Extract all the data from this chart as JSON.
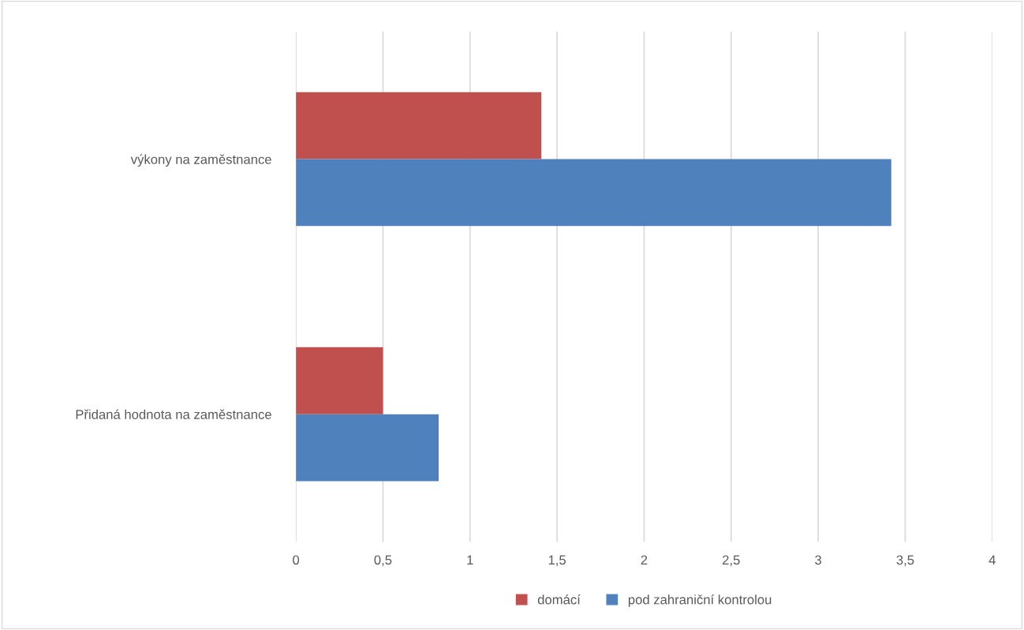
{
  "chart_data": {
    "type": "bar",
    "orientation": "horizontal",
    "categories": [
      "výkony na zaměstnance",
      "Přidaná hodnota na zaměstnance"
    ],
    "series": [
      {
        "name": "domácí",
        "color": "#c0504d",
        "values": [
          1.41,
          0.5
        ]
      },
      {
        "name": "pod zahraniční kontrolou",
        "color": "#4f81bd",
        "values": [
          3.42,
          0.82
        ]
      }
    ],
    "xlim": [
      0,
      4
    ],
    "xticks": [
      0,
      {
        "value": 0.5,
        "label": "0,5"
      },
      1,
      {
        "value": 1.5,
        "label": "1,5"
      },
      2,
      {
        "value": 2.5,
        "label": "2,5"
      },
      3,
      {
        "value": 3.5,
        "label": "3,5"
      },
      4
    ],
    "grid": "x",
    "legend": "bottom"
  }
}
